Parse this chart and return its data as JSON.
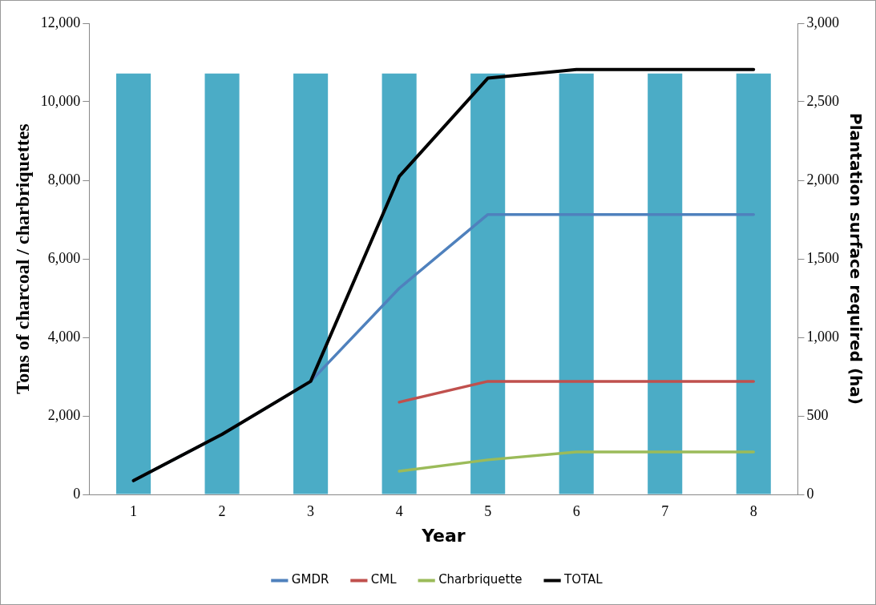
{
  "chart_data": {
    "type": "line",
    "xlabel": "Year",
    "ylabel": "Tons of charcoal / charbriquettes",
    "y2label": "Plantation surface required (ha)",
    "categories": [
      "1",
      "2",
      "3",
      "4",
      "5",
      "6",
      "7",
      "8"
    ],
    "ylim": [
      0,
      12000
    ],
    "yticks": [
      {
        "value": 0,
        "label": "0"
      },
      {
        "value": 2000,
        "label": "2,000"
      },
      {
        "value": 4000,
        "label": "4,000"
      },
      {
        "value": 6000,
        "label": "6,000"
      },
      {
        "value": 8000,
        "label": "8,000"
      },
      {
        "value": 10000,
        "label": "10,000"
      },
      {
        "value": 12000,
        "label": "12,000"
      }
    ],
    "y2lim": [
      0,
      3000
    ],
    "y2ticks": [
      {
        "value": 0,
        "label": "0"
      },
      {
        "value": 500,
        "label": "500"
      },
      {
        "value": 1000,
        "label": "1,000"
      },
      {
        "value": 1500,
        "label": "1,500"
      },
      {
        "value": 2000,
        "label": "2,000"
      },
      {
        "value": 2500,
        "label": "2,500"
      },
      {
        "value": 3000,
        "label": "3,000"
      }
    ],
    "grid": false,
    "legend": "bottom",
    "marker": "none",
    "line_style": "solid",
    "series": [
      {
        "type": "bar",
        "axis": "y2",
        "color": "#4bacc6",
        "values": [
          2680,
          2680,
          2680,
          2680,
          2680,
          2680,
          2680,
          2680
        ]
      },
      {
        "name": "GMDR",
        "color": "#4f81bd",
        "values": [
          350,
          1530,
          2880,
          5250,
          7130,
          7130,
          7130,
          7130
        ]
      },
      {
        "name": "CML",
        "color": "#c0504d",
        "values": [
          null,
          null,
          null,
          2350,
          2880,
          2880,
          2880,
          2880
        ]
      },
      {
        "name": "Charbriquette",
        "color": "#9bbb59",
        "values": [
          null,
          null,
          null,
          590,
          880,
          1080,
          1080,
          1080
        ]
      },
      {
        "name": "TOTAL",
        "color": "#000000",
        "values": [
          350,
          1530,
          2880,
          8100,
          10600,
          10820,
          10820,
          10820
        ]
      }
    ]
  }
}
